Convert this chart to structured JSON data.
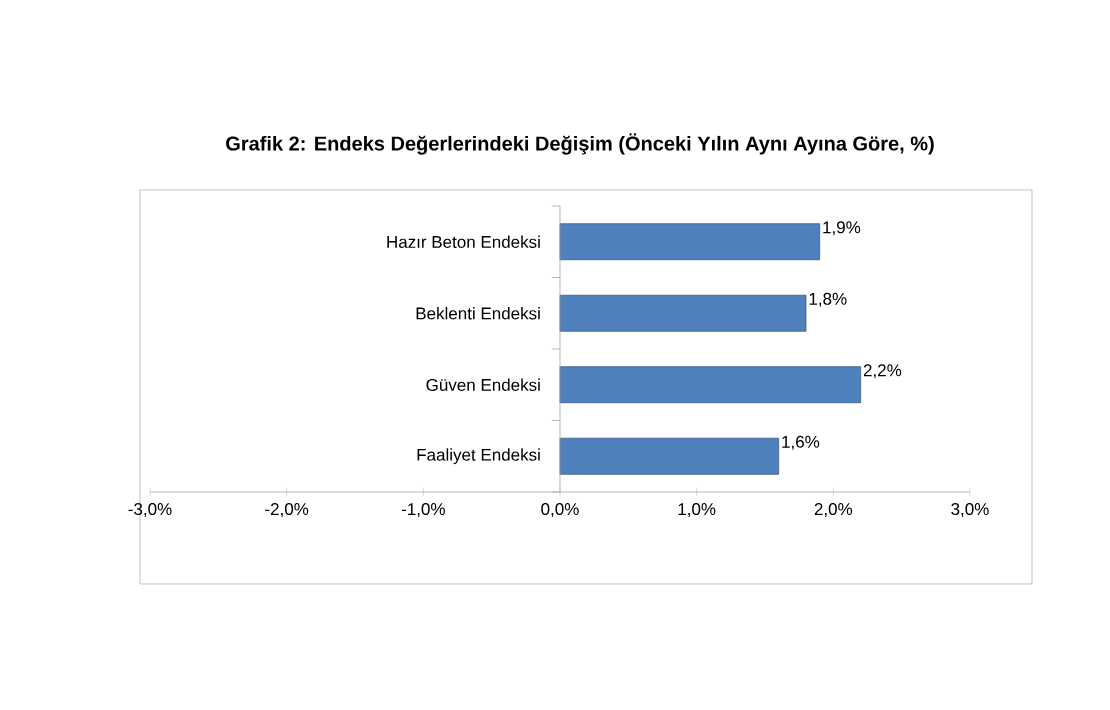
{
  "chart_data": {
    "type": "bar",
    "orientation": "horizontal",
    "title": "Grafik 2: Endeks Değerlerindeki Değişim (Önceki Yılın Aynı Ayına Göre, %)",
    "categories": [
      "Hazır Beton Endeksi",
      "Beklenti Endeksi",
      "Güven Endeksi",
      "Faaliyet Endeksi"
    ],
    "values": [
      1.9,
      1.8,
      2.2,
      1.6
    ],
    "value_labels": [
      "1,9%",
      "1,8%",
      "2,2%",
      "1,6%"
    ],
    "color": "#4f81bd",
    "xlim": [
      -3,
      3
    ],
    "xticks": [
      {
        "value": -3,
        "label": "-3,0%"
      },
      {
        "value": -2,
        "label": "-2,0%"
      },
      {
        "value": -1,
        "label": "-1,0%"
      },
      {
        "value": 0,
        "label": "0,0%"
      },
      {
        "value": 1,
        "label": "1,0%"
      },
      {
        "value": 2,
        "label": "2,0%"
      },
      {
        "value": 3,
        "label": "3,0%"
      }
    ]
  }
}
